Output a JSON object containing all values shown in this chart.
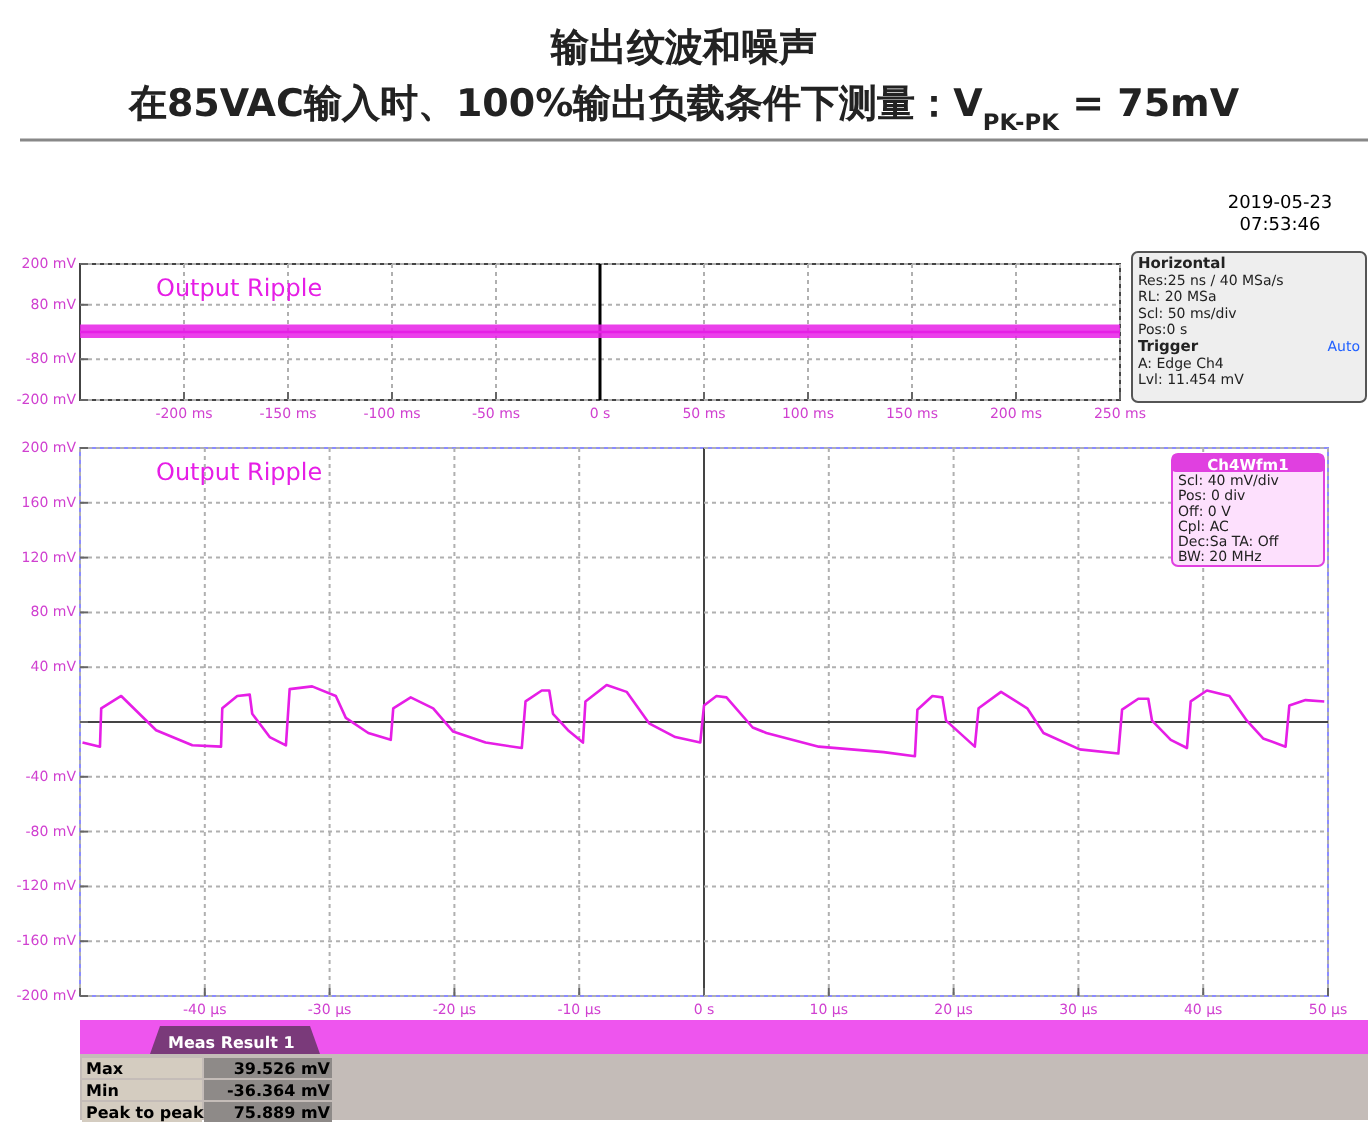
{
  "chart_data": [
    {
      "type": "line",
      "title": "输出纹波和噪声",
      "subtitle": "在85VAC输入时、100%输出负载条件下测量：V$_{PK-PK}$ = 75mV",
      "series": [
        {
          "name": "Output Ripple",
          "color": "#e61ee6",
          "x": [
            -250,
            250
          ],
          "values": [
            0,
            0
          ],
          "lower": [
            -18,
            -18
          ],
          "upper": [
            22,
            22
          ]
        }
      ],
      "xlim": [
        -250,
        250
      ],
      "xticks": [
        {
          "value": -200,
          "label": "-200 ms"
        },
        {
          "value": -150,
          "label": "-150 ms"
        },
        {
          "value": -100,
          "label": "-100 ms"
        },
        {
          "value": -50,
          "label": "-50 ms"
        },
        {
          "value": 0,
          "label": "0 s"
        },
        {
          "value": 50,
          "label": "50 ms"
        },
        {
          "value": 100,
          "label": "100 ms"
        },
        {
          "value": 150,
          "label": "150 ms"
        },
        {
          "value": 200,
          "label": "200 ms"
        },
        {
          "value": 250,
          "label": "250 ms"
        }
      ],
      "ylim": [
        -200,
        200
      ],
      "yticks": [
        {
          "value": 200,
          "label": "200 mV"
        },
        {
          "value": 80,
          "label": "80 mV"
        },
        {
          "value": 0,
          "label": null
        },
        {
          "value": -80,
          "label": "-80 mV"
        },
        {
          "value": -200,
          "label": "-200 mV"
        }
      ],
      "grid": true,
      "ref_lines": [
        {
          "axis": "x",
          "value": 0,
          "color": "#000000"
        }
      ],
      "annotations": [
        "2019-05-23",
        "07:53:46",
        "Horizontal",
        "Res:25 ns / 40 MSa/s",
        "RL: 20 MSa",
        "Scl: 50 ms/div",
        "Pos:0 s",
        "Trigger",
        "Auto",
        "A: Edge Ch4",
        "Lvl: 11.454 mV"
      ]
    },
    {
      "type": "line",
      "series": [
        {
          "name": "Output Ripple",
          "color": "#e61ee6",
          "x": [
            -49.8,
            -48.4,
            -48.3,
            -46.7,
            -43.9,
            -41,
            -38.7,
            -38.6,
            -37.4,
            -36.4,
            -36.2,
            -34.8,
            -33.5,
            -33.2,
            -31.4,
            -29.5,
            -28.7,
            -26.9,
            -25.1,
            -24.9,
            -23.5,
            -21.7,
            -20.1,
            -17.5,
            -14.6,
            -14.3,
            -13,
            -12.4,
            -12.1,
            -10.9,
            -9.7,
            -9.5,
            -7.8,
            -6.2,
            -4.4,
            -2.3,
            -0.3,
            0,
            1,
            1.8,
            3.9,
            5,
            9.2,
            14.4,
            16.9,
            17.1,
            18.3,
            19.1,
            19.4,
            21.7,
            22,
            23.8,
            25.9,
            27.2,
            30.1,
            33.2,
            33.5,
            34.8,
            35.6,
            35.9,
            37.4,
            38.7,
            39,
            40.3,
            42.1,
            43.5,
            44.8,
            46.6,
            46.9,
            48.2,
            49.7
          ],
          "values": [
            -15,
            -18,
            10,
            19,
            -6,
            -17,
            -18,
            10,
            19,
            20,
            6,
            -11,
            -17,
            24,
            26,
            19,
            3,
            -8,
            -13,
            10,
            18,
            10,
            -7,
            -15,
            -19,
            15,
            23,
            23,
            6,
            -6,
            -15,
            15,
            27,
            22,
            -1,
            -11,
            -15,
            12,
            19,
            18,
            -4,
            -8,
            -18,
            -22,
            -25,
            9,
            19,
            18,
            1,
            -18,
            10,
            22,
            10,
            -8,
            -20,
            -23,
            9,
            17,
            17,
            1,
            -13,
            -19,
            15,
            23,
            19,
            1,
            -12,
            -18,
            12,
            16,
            15
          ]
        }
      ],
      "xlim": [
        -50,
        50
      ],
      "xticks": [
        {
          "value": -50,
          "label": null
        },
        {
          "value": -40,
          "label": "-40 µs"
        },
        {
          "value": -30,
          "label": "-30 µs"
        },
        {
          "value": -20,
          "label": "-20 µs"
        },
        {
          "value": -10,
          "label": "-10 µs"
        },
        {
          "value": 0,
          "label": "0 s"
        },
        {
          "value": 10,
          "label": "10 µs"
        },
        {
          "value": 20,
          "label": "20 µs"
        },
        {
          "value": 30,
          "label": "30 µs"
        },
        {
          "value": 40,
          "label": "40 µs"
        },
        {
          "value": 50,
          "label": "50 µs"
        }
      ],
      "ylim": [
        -200,
        200
      ],
      "yticks": [
        {
          "value": 200,
          "label": "200 mV"
        },
        {
          "value": 160,
          "label": "160 mV"
        },
        {
          "value": 120,
          "label": "120 mV"
        },
        {
          "value": 80,
          "label": "80 mV"
        },
        {
          "value": 40,
          "label": "40 mV"
        },
        {
          "value": 0,
          "label": null
        },
        {
          "value": -40,
          "label": "-40 mV"
        },
        {
          "value": -80,
          "label": "-80 mV"
        },
        {
          "value": -120,
          "label": "-120 mV"
        },
        {
          "value": -160,
          "label": "-160 mV"
        },
        {
          "value": -200,
          "label": "-200 mV"
        }
      ],
      "grid": true,
      "annotations": [
        "Ch4Wfm1",
        "Scl: 40 mV/div",
        "Pos: 0 div",
        "Off: 0 V",
        "Cpl: AC",
        "Dec:Sa    TA: Off",
        "BW: 20 MHz"
      ]
    },
    {
      "type": "other",
      "title": "Meas Result 1",
      "annotations": [
        "Max",
        "39.526 mV",
        "Min",
        "-36.364 mV",
        "Peak to peak",
        "75.889 mV"
      ]
    }
  ]
}
